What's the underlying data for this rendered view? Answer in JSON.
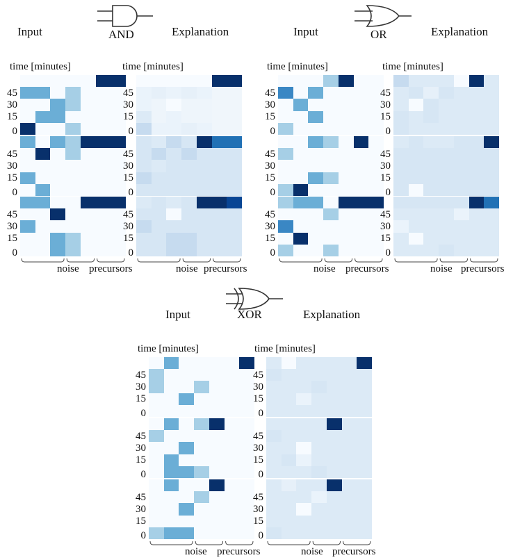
{
  "sections": [
    {
      "key": "and",
      "gate_label": "AND",
      "gate_icon": "and-gate-icon",
      "input_title": "Input",
      "explanation_title": "Explanation",
      "time_label": "time [minutes]",
      "y_ticks": [
        "45",
        "30",
        "15",
        "0"
      ],
      "x_group_labels": [
        "noise",
        "precursors"
      ],
      "input_rows": [
        [
          [
            "#f7fbff",
            "#f7fbff",
            "#f7fbff",
            "#f7fbff",
            "#f7fbff",
            "#08306b",
            "#08306b"
          ],
          [
            "#6baed6",
            "#6baed6",
            "#f7fbff",
            "#a6cfe6",
            "#f7fbff",
            "#f7fbff",
            "#f7fbff"
          ],
          [
            "#f7fbff",
            "#f7fbff",
            "#6baed6",
            "#a6cfe6",
            "#f7fbff",
            "#f7fbff",
            "#f7fbff"
          ],
          [
            "#f7fbff",
            "#6baed6",
            "#6baed6",
            "#f7fbff",
            "#f7fbff",
            "#f7fbff",
            "#f7fbff"
          ],
          [
            "#08306b",
            "#f7fbff",
            "#f7fbff",
            "#a6cfe6",
            "#f7fbff",
            "#f7fbff",
            "#f7fbff"
          ]
        ],
        [
          [
            "#6baed6",
            "#f7fbff",
            "#6baed6",
            "#a6cfe6",
            "#08306b",
            "#08306b",
            "#08306b"
          ],
          [
            "#f7fbff",
            "#08306b",
            "#f7fbff",
            "#a6cfe6",
            "#f7fbff",
            "#f7fbff",
            "#f7fbff"
          ],
          [
            "#f7fbff",
            "#f7fbff",
            "#f7fbff",
            "#f7fbff",
            "#f7fbff",
            "#f7fbff",
            "#f7fbff"
          ],
          [
            "#6baed6",
            "#f7fbff",
            "#f7fbff",
            "#f7fbff",
            "#f7fbff",
            "#f7fbff",
            "#f7fbff"
          ],
          [
            "#f7fbff",
            "#6baed6",
            "#f7fbff",
            "#f7fbff",
            "#f7fbff",
            "#f7fbff",
            "#f7fbff"
          ]
        ],
        [
          [
            "#6baed6",
            "#6baed6",
            "#f7fbff",
            "#f7fbff",
            "#08306b",
            "#08306b",
            "#08306b"
          ],
          [
            "#f7fbff",
            "#f7fbff",
            "#08306b",
            "#f7fbff",
            "#f7fbff",
            "#f7fbff",
            "#f7fbff"
          ],
          [
            "#6baed6",
            "#f7fbff",
            "#f7fbff",
            "#f7fbff",
            "#f7fbff",
            "#f7fbff",
            "#f7fbff"
          ],
          [
            "#f7fbff",
            "#f7fbff",
            "#6baed6",
            "#a6cfe6",
            "#f7fbff",
            "#f7fbff",
            "#f7fbff"
          ],
          [
            "#f7fbff",
            "#f7fbff",
            "#6baed6",
            "#a6cfe6",
            "#f7fbff",
            "#f7fbff",
            "#f7fbff"
          ]
        ]
      ],
      "explanation_rows": [
        [
          [
            "#f7fbff",
            "#f7fbff",
            "#f7fbff",
            "#f7fbff",
            "#f7fbff",
            "#08306b",
            "#08306b"
          ],
          [
            "#eaf3fb",
            "#e6f0f9",
            "#eaf3fb",
            "#e6f0f9",
            "#eaf3fb",
            "#f0f6fb",
            "#f0f6fb"
          ],
          [
            "#eaf3fb",
            "#eef5fb",
            "#f7fbff",
            "#eef5fb",
            "#eef5fb",
            "#f0f6fb",
            "#f0f6fb"
          ],
          [
            "#dceaf6",
            "#eef5fb",
            "#eaf3fb",
            "#eef5fb",
            "#eef5fb",
            "#f0f6fb",
            "#f0f6fb"
          ],
          [
            "#c6dbef",
            "#eaf3fb",
            "#eaf3fb",
            "#e6f0f9",
            "#eaf3fb",
            "#f0f6fb",
            "#f0f6fb"
          ]
        ],
        [
          [
            "#d6e6f4",
            "#dceaf6",
            "#c6dbef",
            "#d6e6f4",
            "#08306b",
            "#2171b5",
            "#2171b5"
          ],
          [
            "#d6e6f4",
            "#c6dbef",
            "#d6e6f4",
            "#c6dbef",
            "#d6e6f4",
            "#d6e6f4",
            "#d6e6f4"
          ],
          [
            "#d6e6f4",
            "#dceaf6",
            "#d6e6f4",
            "#d6e6f4",
            "#d6e6f4",
            "#d6e6f4",
            "#d6e6f4"
          ],
          [
            "#c6dbef",
            "#d6e6f4",
            "#d6e6f4",
            "#d6e6f4",
            "#d6e6f4",
            "#d6e6f4",
            "#d6e6f4"
          ],
          [
            "#d6e6f4",
            "#d6e6f4",
            "#d6e6f4",
            "#d6e6f4",
            "#d6e6f4",
            "#d6e6f4",
            "#d6e6f4"
          ]
        ],
        [
          [
            "#dceaf6",
            "#d6e6f4",
            "#dceaf6",
            "#d6e6f4",
            "#08306b",
            "#08306b",
            "#084594"
          ],
          [
            "#d6e6f4",
            "#d6e6f4",
            "#f7fbff",
            "#d6e6f4",
            "#d6e6f4",
            "#d6e6f4",
            "#d6e6f4"
          ],
          [
            "#c6dbef",
            "#d6e6f4",
            "#d6e6f4",
            "#d6e6f4",
            "#d6e6f4",
            "#d6e6f4",
            "#d6e6f4"
          ],
          [
            "#d6e6f4",
            "#d6e6f4",
            "#c6dbef",
            "#c6dbef",
            "#d6e6f4",
            "#d6e6f4",
            "#d6e6f4"
          ],
          [
            "#d6e6f4",
            "#d6e6f4",
            "#c6dbef",
            "#c6dbef",
            "#d6e6f4",
            "#d6e6f4",
            "#d6e6f4"
          ]
        ]
      ]
    },
    {
      "key": "or",
      "gate_label": "OR",
      "gate_icon": "or-gate-icon",
      "input_title": "Input",
      "explanation_title": "Explanation",
      "time_label": "time [minutes]",
      "y_ticks": [
        "45",
        "30",
        "15",
        "0"
      ],
      "x_group_labels": [
        "noise",
        "precursors"
      ],
      "input_rows": [
        [
          [
            "#f7fbff",
            "#f7fbff",
            "#f7fbff",
            "#a6cfe6",
            "#08306b",
            "#f7fbff",
            "#f7fbff"
          ],
          [
            "#3a87c4",
            "#f7fbff",
            "#6baed6",
            "#f7fbff",
            "#f7fbff",
            "#f7fbff",
            "#f7fbff"
          ],
          [
            "#f7fbff",
            "#6baed6",
            "#f7fbff",
            "#f7fbff",
            "#f7fbff",
            "#f7fbff",
            "#f7fbff"
          ],
          [
            "#f7fbff",
            "#f7fbff",
            "#6baed6",
            "#f7fbff",
            "#f7fbff",
            "#f7fbff",
            "#f7fbff"
          ],
          [
            "#a6cfe6",
            "#f7fbff",
            "#f7fbff",
            "#f7fbff",
            "#f7fbff",
            "#f7fbff",
            "#f7fbff"
          ]
        ],
        [
          [
            "#f7fbff",
            "#f7fbff",
            "#6baed6",
            "#a6cfe6",
            "#f7fbff",
            "#08306b",
            "#f7fbff"
          ],
          [
            "#a6cfe6",
            "#f7fbff",
            "#f7fbff",
            "#f7fbff",
            "#f7fbff",
            "#f7fbff",
            "#f7fbff"
          ],
          [
            "#f7fbff",
            "#f7fbff",
            "#f7fbff",
            "#f7fbff",
            "#f7fbff",
            "#f7fbff",
            "#f7fbff"
          ],
          [
            "#f7fbff",
            "#f7fbff",
            "#6baed6",
            "#a6cfe6",
            "#f7fbff",
            "#f7fbff",
            "#f7fbff"
          ],
          [
            "#a6cfe6",
            "#08306b",
            "#f7fbff",
            "#f7fbff",
            "#f7fbff",
            "#f7fbff",
            "#f7fbff"
          ]
        ],
        [
          [
            "#a6cfe6",
            "#6baed6",
            "#6baed6",
            "#f7fbff",
            "#08306b",
            "#08306b",
            "#08306b"
          ],
          [
            "#f7fbff",
            "#f7fbff",
            "#f7fbff",
            "#a6cfe6",
            "#f7fbff",
            "#f7fbff",
            "#f7fbff"
          ],
          [
            "#3a87c4",
            "#f7fbff",
            "#f7fbff",
            "#f7fbff",
            "#f7fbff",
            "#f7fbff",
            "#f7fbff"
          ],
          [
            "#f7fbff",
            "#08306b",
            "#f7fbff",
            "#f7fbff",
            "#f7fbff",
            "#f7fbff",
            "#f7fbff"
          ],
          [
            "#a6cfe6",
            "#f7fbff",
            "#f7fbff",
            "#a6cfe6",
            "#f7fbff",
            "#f7fbff",
            "#f7fbff"
          ]
        ]
      ],
      "explanation_rows": [
        [
          [
            "#c6dbef",
            "#dceaf6",
            "#dceaf6",
            "#dceaf6",
            "#f7fbff",
            "#08306b",
            "#dceaf6"
          ],
          [
            "#dceaf6",
            "#d6e6f4",
            "#e6f0f9",
            "#d6e6f4",
            "#dceaf6",
            "#dceaf6",
            "#dceaf6"
          ],
          [
            "#dceaf6",
            "#f7fbff",
            "#d6e6f4",
            "#dceaf6",
            "#dceaf6",
            "#dceaf6",
            "#dceaf6"
          ],
          [
            "#d6e6f4",
            "#dceaf6",
            "#d6e6f4",
            "#dceaf6",
            "#dceaf6",
            "#dceaf6",
            "#dceaf6"
          ],
          [
            "#d6e6f4",
            "#dceaf6",
            "#dceaf6",
            "#dceaf6",
            "#dceaf6",
            "#dceaf6",
            "#dceaf6"
          ]
        ],
        [
          [
            "#dceaf6",
            "#d6e6f4",
            "#dceaf6",
            "#dceaf6",
            "#d6e6f4",
            "#d6e6f4",
            "#08306b"
          ],
          [
            "#d6e6f4",
            "#d6e6f4",
            "#d6e6f4",
            "#d6e6f4",
            "#d6e6f4",
            "#d6e6f4",
            "#d6e6f4"
          ],
          [
            "#d6e6f4",
            "#d6e6f4",
            "#d6e6f4",
            "#d6e6f4",
            "#d6e6f4",
            "#d6e6f4",
            "#d6e6f4"
          ],
          [
            "#d6e6f4",
            "#d6e6f4",
            "#d6e6f4",
            "#d6e6f4",
            "#d6e6f4",
            "#d6e6f4",
            "#d6e6f4"
          ],
          [
            "#d6e6f4",
            "#f7fbff",
            "#d6e6f4",
            "#d6e6f4",
            "#d6e6f4",
            "#d6e6f4",
            "#d6e6f4"
          ]
        ],
        [
          [
            "#d6e6f4",
            "#d6e6f4",
            "#d6e6f4",
            "#d6e6f4",
            "#d6e6f4",
            "#08306b",
            "#2171b5"
          ],
          [
            "#dceaf6",
            "#dceaf6",
            "#dceaf6",
            "#dceaf6",
            "#eaf3fb",
            "#dceaf6",
            "#dceaf6"
          ],
          [
            "#eaf3fb",
            "#dceaf6",
            "#dceaf6",
            "#dceaf6",
            "#dceaf6",
            "#dceaf6",
            "#dceaf6"
          ],
          [
            "#dceaf6",
            "#f7fbff",
            "#dceaf6",
            "#dceaf6",
            "#dceaf6",
            "#dceaf6",
            "#dceaf6"
          ],
          [
            "#dceaf6",
            "#dceaf6",
            "#dceaf6",
            "#d6e6f4",
            "#dceaf6",
            "#dceaf6",
            "#dceaf6"
          ]
        ]
      ]
    },
    {
      "key": "xor",
      "gate_label": "XOR",
      "gate_icon": "xor-gate-icon",
      "input_title": "Input",
      "explanation_title": "Explanation",
      "time_label": "time [minutes]",
      "y_ticks": [
        "45",
        "30",
        "15",
        "0"
      ],
      "x_group_labels": [
        "noise",
        "precursors"
      ],
      "input_rows": [
        [
          [
            "#f7fbff",
            "#6baed6",
            "#f7fbff",
            "#f7fbff",
            "#f7fbff",
            "#f7fbff",
            "#08306b"
          ],
          [
            "#a6cfe6",
            "#f7fbff",
            "#f7fbff",
            "#f7fbff",
            "#f7fbff",
            "#f7fbff",
            "#f7fbff"
          ],
          [
            "#a6cfe6",
            "#f7fbff",
            "#f7fbff",
            "#a6cfe6",
            "#f7fbff",
            "#f7fbff",
            "#f7fbff"
          ],
          [
            "#f7fbff",
            "#f7fbff",
            "#6baed6",
            "#f7fbff",
            "#f7fbff",
            "#f7fbff",
            "#f7fbff"
          ],
          [
            "#f7fbff",
            "#f7fbff",
            "#f7fbff",
            "#f7fbff",
            "#f7fbff",
            "#f7fbff",
            "#f7fbff"
          ]
        ],
        [
          [
            "#f7fbff",
            "#6baed6",
            "#f7fbff",
            "#a6cfe6",
            "#08306b",
            "#f7fbff",
            "#f7fbff"
          ],
          [
            "#a6cfe6",
            "#f7fbff",
            "#f7fbff",
            "#f7fbff",
            "#f7fbff",
            "#f7fbff",
            "#f7fbff"
          ],
          [
            "#f7fbff",
            "#f7fbff",
            "#6baed6",
            "#f7fbff",
            "#f7fbff",
            "#f7fbff",
            "#f7fbff"
          ],
          [
            "#f7fbff",
            "#6baed6",
            "#f7fbff",
            "#f7fbff",
            "#f7fbff",
            "#f7fbff",
            "#f7fbff"
          ],
          [
            "#f7fbff",
            "#6baed6",
            "#6baed6",
            "#a6cfe6",
            "#f7fbff",
            "#f7fbff",
            "#f7fbff"
          ]
        ],
        [
          [
            "#f7fbff",
            "#6baed6",
            "#f7fbff",
            "#f7fbff",
            "#08306b",
            "#f7fbff",
            "#f7fbff"
          ],
          [
            "#f7fbff",
            "#f7fbff",
            "#f7fbff",
            "#a6cfe6",
            "#f7fbff",
            "#f7fbff",
            "#f7fbff"
          ],
          [
            "#f7fbff",
            "#f7fbff",
            "#6baed6",
            "#f7fbff",
            "#f7fbff",
            "#f7fbff",
            "#f7fbff"
          ],
          [
            "#f7fbff",
            "#f7fbff",
            "#f7fbff",
            "#f7fbff",
            "#f7fbff",
            "#f7fbff",
            "#f7fbff"
          ],
          [
            "#a6cfe6",
            "#6baed6",
            "#6baed6",
            "#f7fbff",
            "#f7fbff",
            "#f7fbff",
            "#f7fbff"
          ]
        ]
      ],
      "explanation_rows": [
        [
          [
            "#dceaf6",
            "#f7fbff",
            "#dceaf6",
            "#dceaf6",
            "#dceaf6",
            "#dceaf6",
            "#08306b"
          ],
          [
            "#d6e6f4",
            "#dceaf6",
            "#dceaf6",
            "#dceaf6",
            "#dceaf6",
            "#dceaf6",
            "#dceaf6"
          ],
          [
            "#dceaf6",
            "#dceaf6",
            "#dceaf6",
            "#d6e6f4",
            "#dceaf6",
            "#dceaf6",
            "#dceaf6"
          ],
          [
            "#dceaf6",
            "#dceaf6",
            "#eaf3fb",
            "#dceaf6",
            "#dceaf6",
            "#dceaf6",
            "#dceaf6"
          ],
          [
            "#dceaf6",
            "#dceaf6",
            "#dceaf6",
            "#dceaf6",
            "#dceaf6",
            "#dceaf6",
            "#dceaf6"
          ]
        ],
        [
          [
            "#dceaf6",
            "#dceaf6",
            "#dceaf6",
            "#dceaf6",
            "#08306b",
            "#dceaf6",
            "#dceaf6"
          ],
          [
            "#d6e6f4",
            "#dceaf6",
            "#dceaf6",
            "#dceaf6",
            "#dceaf6",
            "#dceaf6",
            "#dceaf6"
          ],
          [
            "#dceaf6",
            "#dceaf6",
            "#f7fbff",
            "#dceaf6",
            "#dceaf6",
            "#dceaf6",
            "#dceaf6"
          ],
          [
            "#dceaf6",
            "#d6e6f4",
            "#eaf3fb",
            "#dceaf6",
            "#dceaf6",
            "#dceaf6",
            "#dceaf6"
          ],
          [
            "#dceaf6",
            "#dceaf6",
            "#dceaf6",
            "#d6e6f4",
            "#dceaf6",
            "#dceaf6",
            "#dceaf6"
          ]
        ],
        [
          [
            "#dceaf6",
            "#e6f0f9",
            "#dceaf6",
            "#dceaf6",
            "#08306b",
            "#dceaf6",
            "#dceaf6"
          ],
          [
            "#dceaf6",
            "#dceaf6",
            "#dceaf6",
            "#eaf3fb",
            "#dceaf6",
            "#dceaf6",
            "#dceaf6"
          ],
          [
            "#dceaf6",
            "#dceaf6",
            "#f7fbff",
            "#dceaf6",
            "#dceaf6",
            "#dceaf6",
            "#dceaf6"
          ],
          [
            "#dceaf6",
            "#dceaf6",
            "#dceaf6",
            "#dceaf6",
            "#dceaf6",
            "#dceaf6",
            "#dceaf6"
          ],
          [
            "#d6e6f4",
            "#dceaf6",
            "#dceaf6",
            "#dceaf6",
            "#dceaf6",
            "#dceaf6",
            "#dceaf6"
          ]
        ]
      ]
    }
  ]
}
